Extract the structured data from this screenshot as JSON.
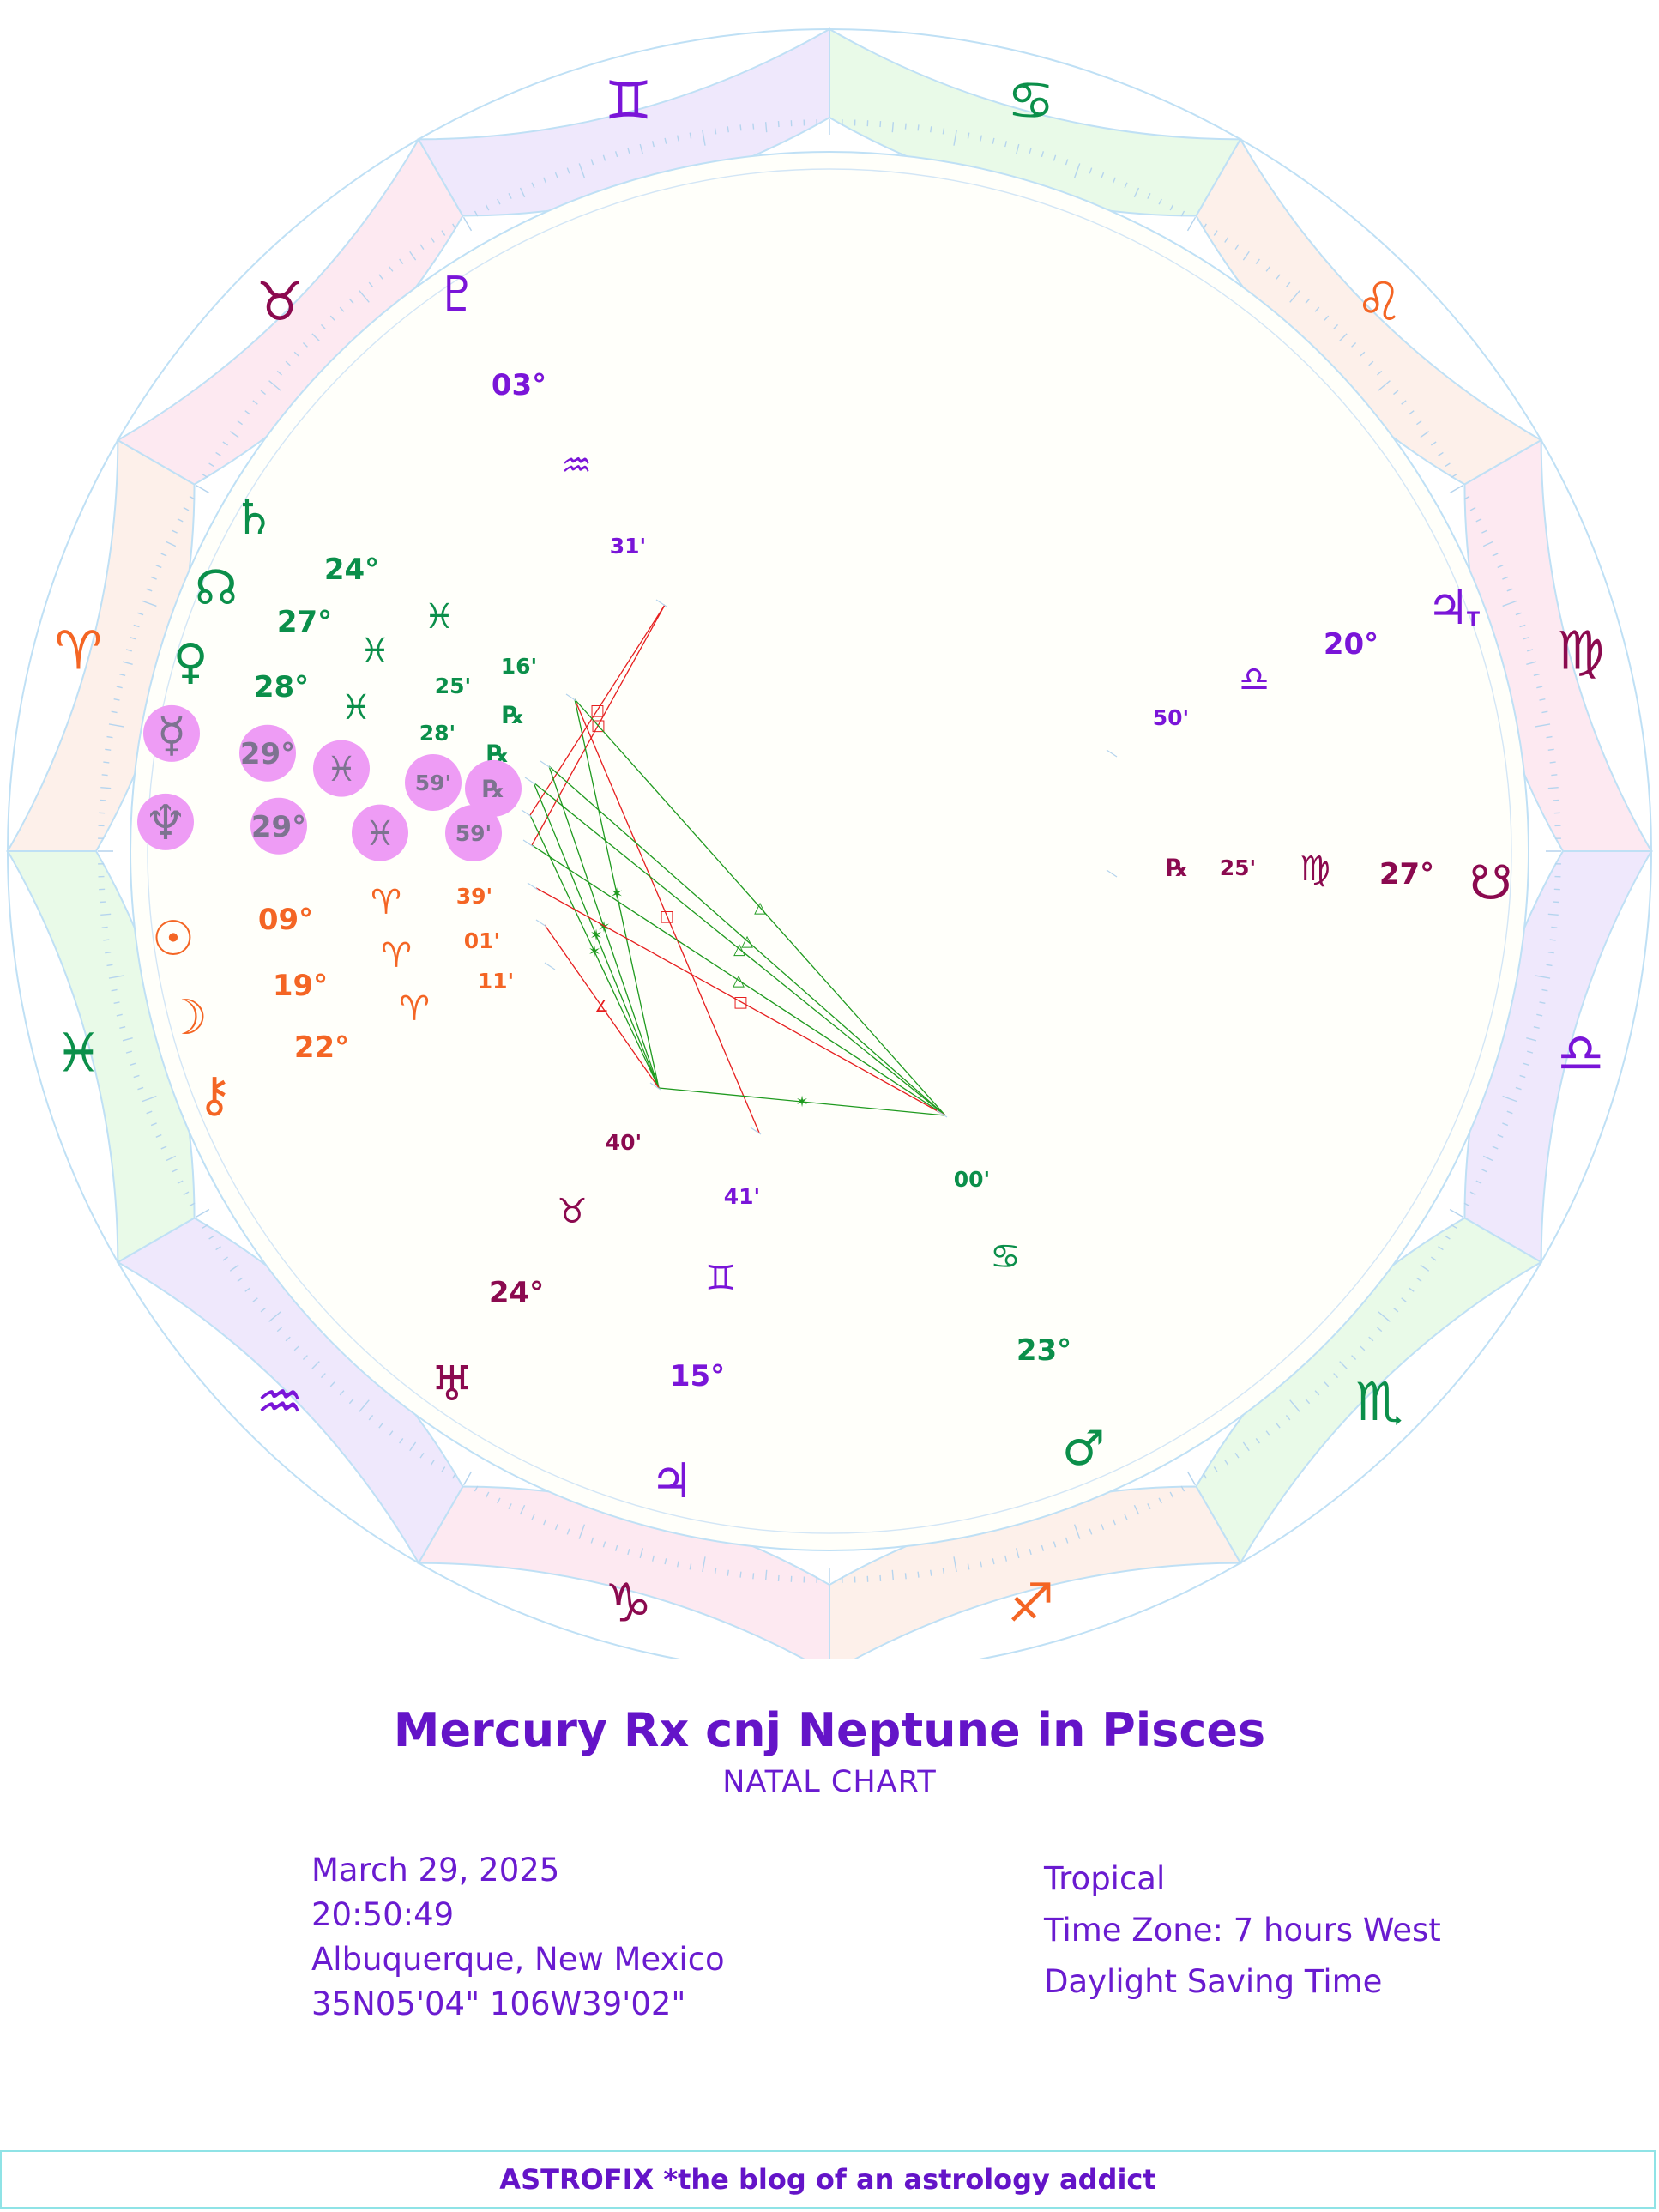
{
  "colors": {
    "fire": "#f46524",
    "earth": "#8b0a4f",
    "air": "#7a15d8",
    "water": "#0b8f4a",
    "retro_highlight": "#ee9cf5",
    "retro_text": "#7d7390",
    "aspect_green": "#1f9a1f",
    "aspect_red": "#e61e1e",
    "title": "#6414c8"
  },
  "zodiac_ring": [
    {
      "sign": "Aries",
      "glyph": "♈",
      "element": "fire"
    },
    {
      "sign": "Taurus",
      "glyph": "♉",
      "element": "earth"
    },
    {
      "sign": "Gemini",
      "glyph": "♊",
      "element": "air"
    },
    {
      "sign": "Cancer",
      "glyph": "♋",
      "element": "water"
    },
    {
      "sign": "Leo",
      "glyph": "♌",
      "element": "fire"
    },
    {
      "sign": "Virgo",
      "glyph": "♍",
      "element": "earth"
    },
    {
      "sign": "Libra",
      "glyph": "♎",
      "element": "air"
    },
    {
      "sign": "Scorpio",
      "glyph": "♏",
      "element": "water"
    },
    {
      "sign": "Sagittarius",
      "glyph": "♐",
      "element": "fire"
    },
    {
      "sign": "Capricorn",
      "glyph": "♑",
      "element": "earth"
    },
    {
      "sign": "Aquarius",
      "glyph": "♒",
      "element": "air"
    },
    {
      "sign": "Pisces",
      "glyph": "♓",
      "element": "water"
    }
  ],
  "points": [
    {
      "id": "pluto",
      "glyph": "♇",
      "deg": "03°",
      "sign": "♒",
      "min": "31'",
      "rx": "",
      "element": "air",
      "highlight": false
    },
    {
      "id": "saturn",
      "glyph": "♄",
      "deg": "24°",
      "sign": "♓",
      "min": "16'",
      "rx": "",
      "element": "water",
      "highlight": false
    },
    {
      "id": "node",
      "glyph": "☊",
      "deg": "27°",
      "sign": "♓",
      "min": "25'",
      "rx": "℞",
      "element": "water",
      "highlight": false
    },
    {
      "id": "venus",
      "glyph": "♀",
      "deg": "28°",
      "sign": "♓",
      "min": "28'",
      "rx": "℞",
      "element": "water",
      "highlight": false
    },
    {
      "id": "mercury",
      "glyph": "☿",
      "deg": "29°",
      "sign": "♓",
      "min": "59'",
      "rx": "℞",
      "element": "water",
      "highlight": true
    },
    {
      "id": "neptune",
      "glyph": "♆",
      "deg": "29°",
      "sign": "♓",
      "min": "59'",
      "rx": "",
      "element": "water",
      "highlight": true
    },
    {
      "id": "sun",
      "glyph": "☉",
      "deg": "09°",
      "sign": "♈",
      "min": "39'",
      "rx": "",
      "element": "fire",
      "highlight": false
    },
    {
      "id": "moon",
      "glyph": "☽",
      "deg": "19°",
      "sign": "♈",
      "min": "01'",
      "rx": "",
      "element": "fire",
      "highlight": false
    },
    {
      "id": "chiron",
      "glyph": "⚷",
      "deg": "22°",
      "sign": "♈",
      "min": "11'",
      "rx": "",
      "element": "fire",
      "highlight": false
    },
    {
      "id": "uranus",
      "glyph": "♅",
      "deg": "24°",
      "sign": "♉",
      "min": "40'",
      "rx": "",
      "element": "earth",
      "highlight": false
    },
    {
      "id": "jupiter",
      "glyph": "♃",
      "deg": "15°",
      "sign": "♊",
      "min": "41'",
      "rx": "",
      "element": "air",
      "highlight": false
    },
    {
      "id": "mars",
      "glyph": "♂",
      "deg": "23°",
      "sign": "♋",
      "min": "00'",
      "rx": "",
      "element": "water",
      "highlight": false
    },
    {
      "id": "south-node",
      "glyph": "☋",
      "deg": "27°",
      "sign": "♍",
      "min": "25'",
      "rx": "℞",
      "element": "earth",
      "highlight": false
    },
    {
      "id": "vertex",
      "glyph": "♃",
      "glyph_sub": "T",
      "deg": "20°",
      "sign": "♎",
      "min": "50'",
      "rx": "",
      "element": "air",
      "highlight": false
    }
  ],
  "aspects": [
    {
      "from": "pluto",
      "to": "mercury",
      "type": "square"
    },
    {
      "from": "pluto",
      "to": "neptune",
      "type": "square"
    },
    {
      "from": "saturn",
      "to": "jupiter",
      "type": "square"
    },
    {
      "from": "saturn",
      "to": "mars",
      "type": "trine"
    },
    {
      "from": "node",
      "to": "mars",
      "type": "trine"
    },
    {
      "from": "venus",
      "to": "mars",
      "type": "trine"
    },
    {
      "from": "neptune",
      "to": "mars",
      "type": "trine"
    },
    {
      "from": "saturn",
      "to": "uranus",
      "type": "sextile"
    },
    {
      "from": "node",
      "to": "uranus",
      "type": "sextile"
    },
    {
      "from": "venus",
      "to": "uranus",
      "type": "sextile"
    },
    {
      "from": "mercury",
      "to": "uranus",
      "type": "sextile"
    },
    {
      "from": "sun",
      "to": "mars",
      "type": "square"
    },
    {
      "from": "moon",
      "to": "uranus",
      "type": "semisquare"
    },
    {
      "from": "uranus",
      "to": "mars",
      "type": "sextile"
    }
  ],
  "title": "Mercury Rx cnj Neptune in Pisces",
  "subtitle": "NATAL CHART",
  "info_left": {
    "date": "March 29, 2025",
    "time": "20:50:49",
    "place": "Albuquerque, New Mexico",
    "coords": "35N05'04\"  106W39'02\""
  },
  "info_right": {
    "zodiac": "Tropical",
    "timezone": "Time Zone: 7 hours West",
    "dst": "Daylight Saving Time"
  },
  "footer": "ASTROFIX *the blog of an astrology addict"
}
